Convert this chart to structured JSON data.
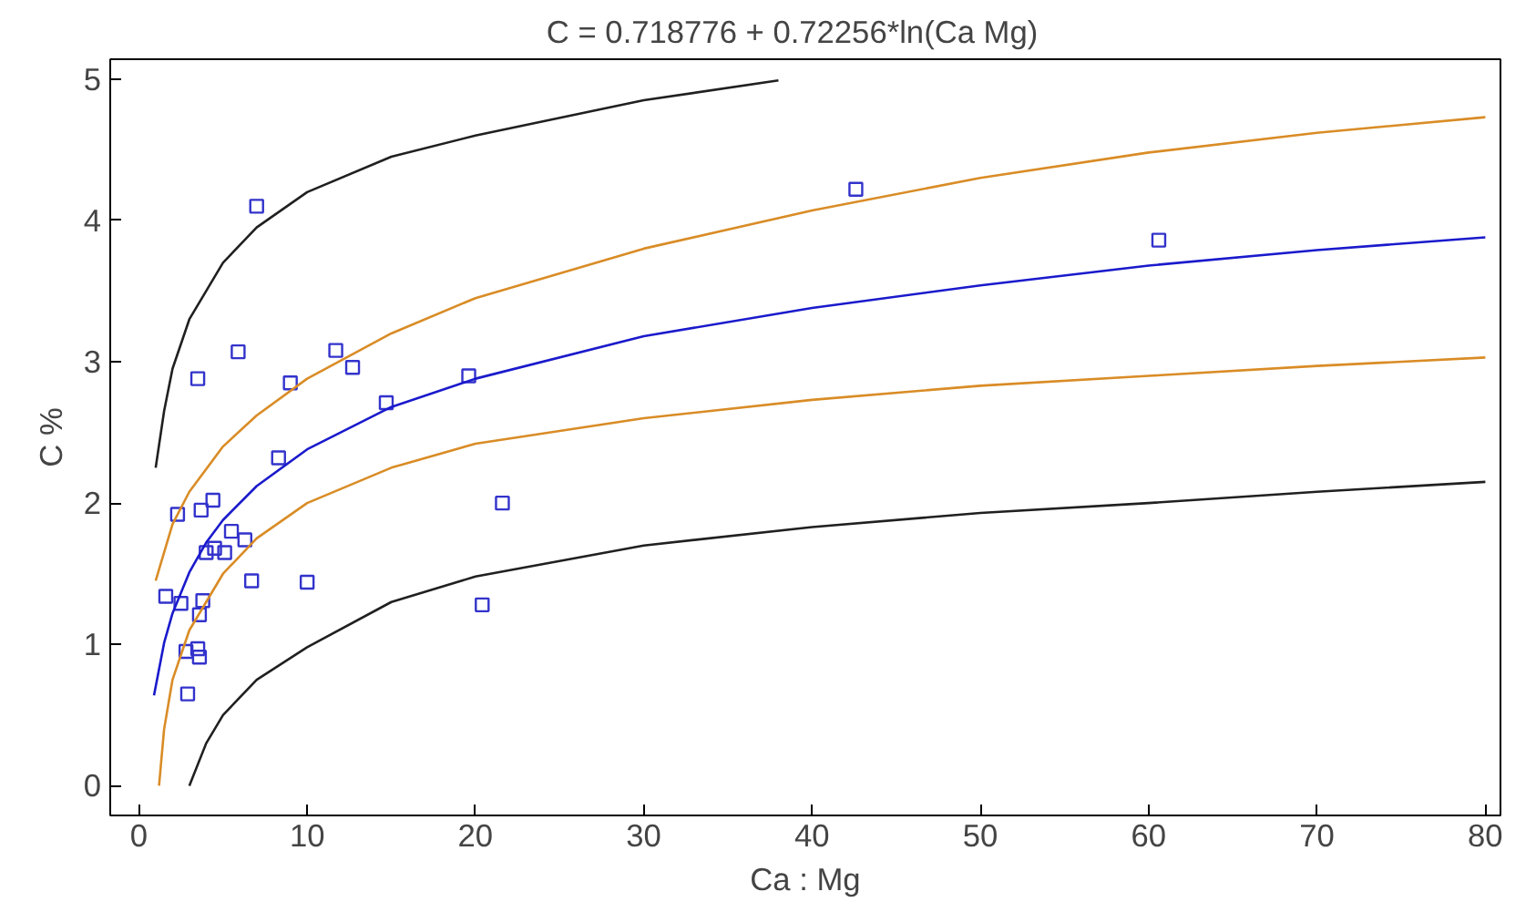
{
  "chart_data": {
    "type": "scatter",
    "title": "C = 0.718776 + 0.72256*ln(Ca    Mg)",
    "xlabel": "Ca : Mg",
    "ylabel": "C %",
    "xlim": [
      -1.7,
      80.9
    ],
    "ylim": [
      -0.21,
      5.14
    ],
    "xticks": [
      0,
      10,
      20,
      30,
      40,
      50,
      60,
      70,
      80
    ],
    "yticks": [
      0,
      1,
      2,
      3,
      4,
      5
    ],
    "grid": false,
    "series": [
      {
        "marker": "square",
        "color": "#3333cc",
        "x": [
          1.6,
          2.3,
          2.5,
          2.8,
          2.9,
          3.5,
          3.5,
          3.6,
          3.7,
          3.6,
          3.8,
          4.0,
          4.4,
          4.5,
          5.1,
          5.5,
          5.9,
          6.3,
          6.7,
          7.0,
          8.3,
          9.0,
          10.0,
          11.7,
          12.7,
          14.7,
          19.6,
          20.4,
          21.6,
          42.6,
          60.6
        ],
        "values": [
          1.34,
          1.92,
          1.29,
          0.95,
          0.65,
          2.88,
          0.97,
          0.91,
          1.95,
          1.21,
          1.31,
          1.65,
          2.02,
          1.68,
          1.65,
          1.8,
          3.07,
          1.74,
          1.45,
          4.1,
          2.32,
          2.85,
          1.44,
          3.08,
          2.96,
          2.71,
          2.9,
          1.28,
          2.0,
          4.22,
          3.86
        ]
      },
      {
        "type": "line",
        "color": "#1a1acc",
        "x": [
          0.9,
          1.5,
          2,
          3,
          4,
          5,
          7,
          10,
          15,
          20,
          30,
          40,
          50,
          60,
          70,
          80
        ],
        "values": [
          0.64,
          1.01,
          1.22,
          1.51,
          1.72,
          1.88,
          2.12,
          2.38,
          2.68,
          2.88,
          3.18,
          3.38,
          3.54,
          3.68,
          3.79,
          3.88
        ]
      },
      {
        "type": "line",
        "color": "#d98c26",
        "x": [
          1,
          2,
          3,
          5,
          7,
          10,
          15,
          20,
          30,
          40,
          50,
          60,
          70,
          80
        ],
        "values": [
          1.45,
          1.85,
          2.08,
          2.4,
          2.62,
          2.88,
          3.2,
          3.45,
          3.8,
          4.07,
          4.3,
          4.48,
          4.62,
          4.73
        ]
      },
      {
        "type": "line",
        "color": "#d98c26",
        "x": [
          1.2,
          1.5,
          2,
          3,
          5,
          7,
          10,
          15,
          20,
          30,
          40,
          50,
          60,
          70,
          80
        ],
        "values": [
          0.0,
          0.4,
          0.75,
          1.1,
          1.5,
          1.75,
          2.0,
          2.25,
          2.42,
          2.6,
          2.73,
          2.83,
          2.9,
          2.97,
          3.03
        ]
      },
      {
        "type": "line",
        "color": "#202020",
        "x": [
          1,
          1.5,
          2,
          3,
          5,
          7,
          10,
          15,
          20,
          30,
          38
        ],
        "values": [
          2.25,
          2.65,
          2.95,
          3.3,
          3.7,
          3.95,
          4.2,
          4.45,
          4.6,
          4.85,
          4.99
        ]
      },
      {
        "type": "line",
        "color": "#202020",
        "x": [
          3,
          4,
          5,
          7,
          10,
          15,
          20,
          30,
          40,
          50,
          60,
          70,
          80
        ],
        "values": [
          0.0,
          0.3,
          0.5,
          0.75,
          0.98,
          1.3,
          1.48,
          1.7,
          1.83,
          1.93,
          2.0,
          2.08,
          2.15
        ]
      }
    ]
  }
}
